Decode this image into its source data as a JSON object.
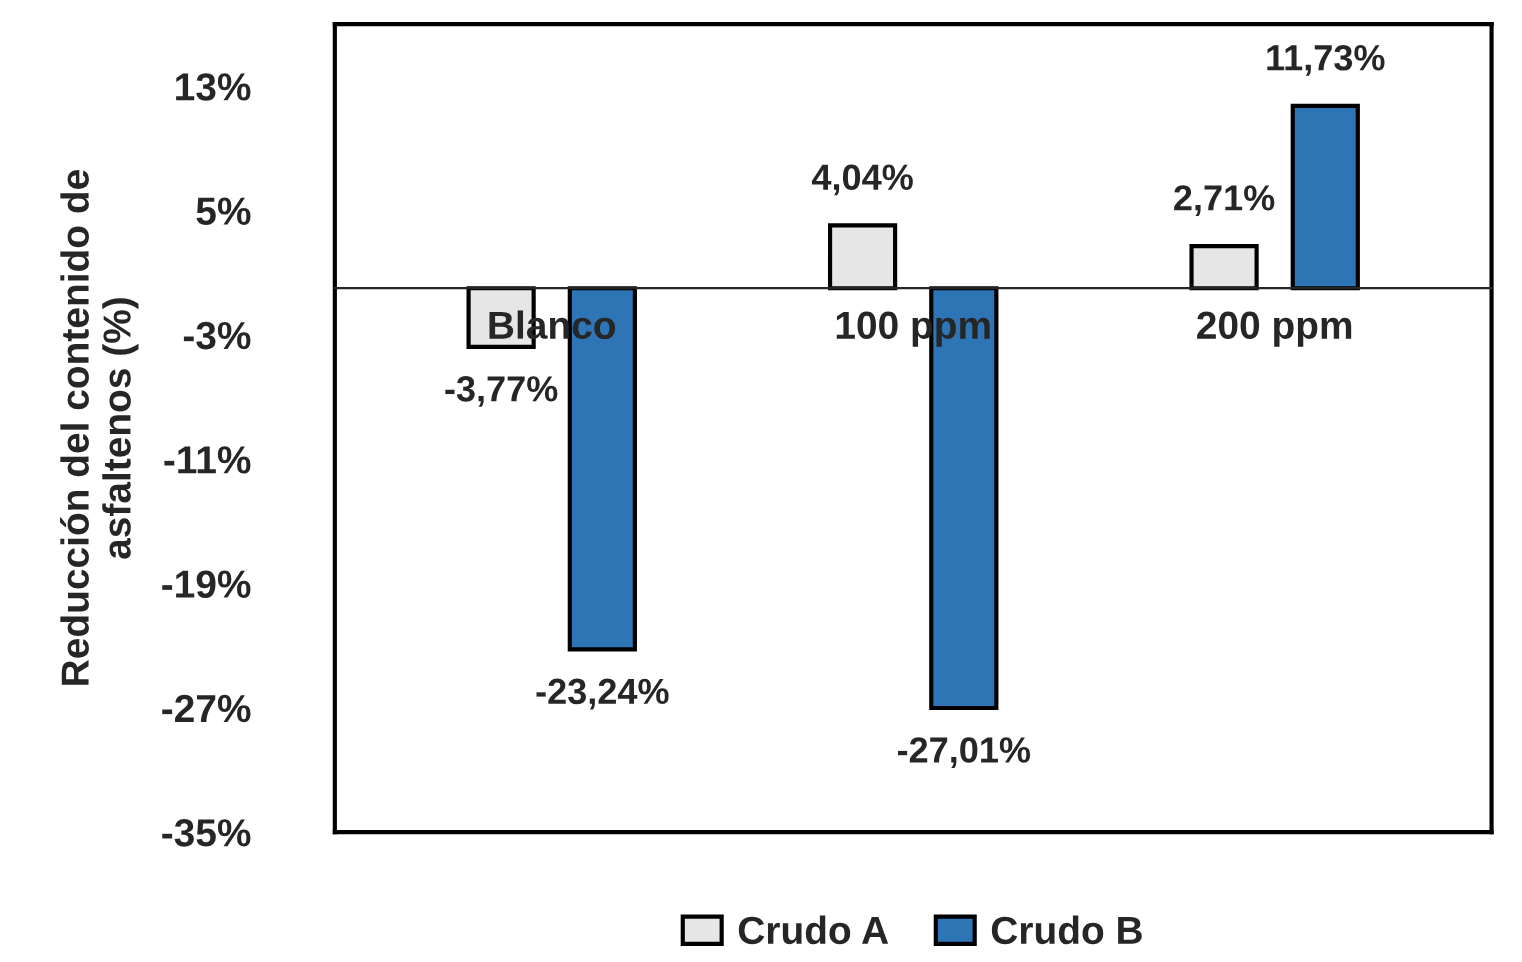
{
  "chart_data": {
    "type": "bar",
    "categories": [
      "Blanco",
      "100 ppm",
      "200 ppm"
    ],
    "ylabel": "Reducción del contenido de\nasfaltenos (%)",
    "series": [
      {
        "name": "Crudo A",
        "color": "#e7e6e6",
        "values": [
          -3.77,
          4.04,
          2.71
        ],
        "value_labels": [
          "-3,77%",
          "4,04%",
          "2,71%"
        ]
      },
      {
        "name": "Crudo B",
        "color": "#2e75b6",
        "values": [
          -23.24,
          -27.01,
          11.73
        ],
        "value_labels": [
          "-23,24%",
          "-27,01%",
          "11,73%"
        ]
      }
    ],
    "ylim": [
      -35,
      17
    ],
    "yticks": [
      {
        "value": 13,
        "label": "13%"
      },
      {
        "value": 5,
        "label": "5%"
      },
      {
        "value": -3,
        "label": "-3%"
      },
      {
        "value": -11,
        "label": "-11%"
      },
      {
        "value": -19,
        "label": "-19%"
      },
      {
        "value": -27,
        "label": "-27%"
      },
      {
        "value": -35,
        "label": "-35%"
      }
    ],
    "grid": false,
    "legend": "bottom"
  }
}
